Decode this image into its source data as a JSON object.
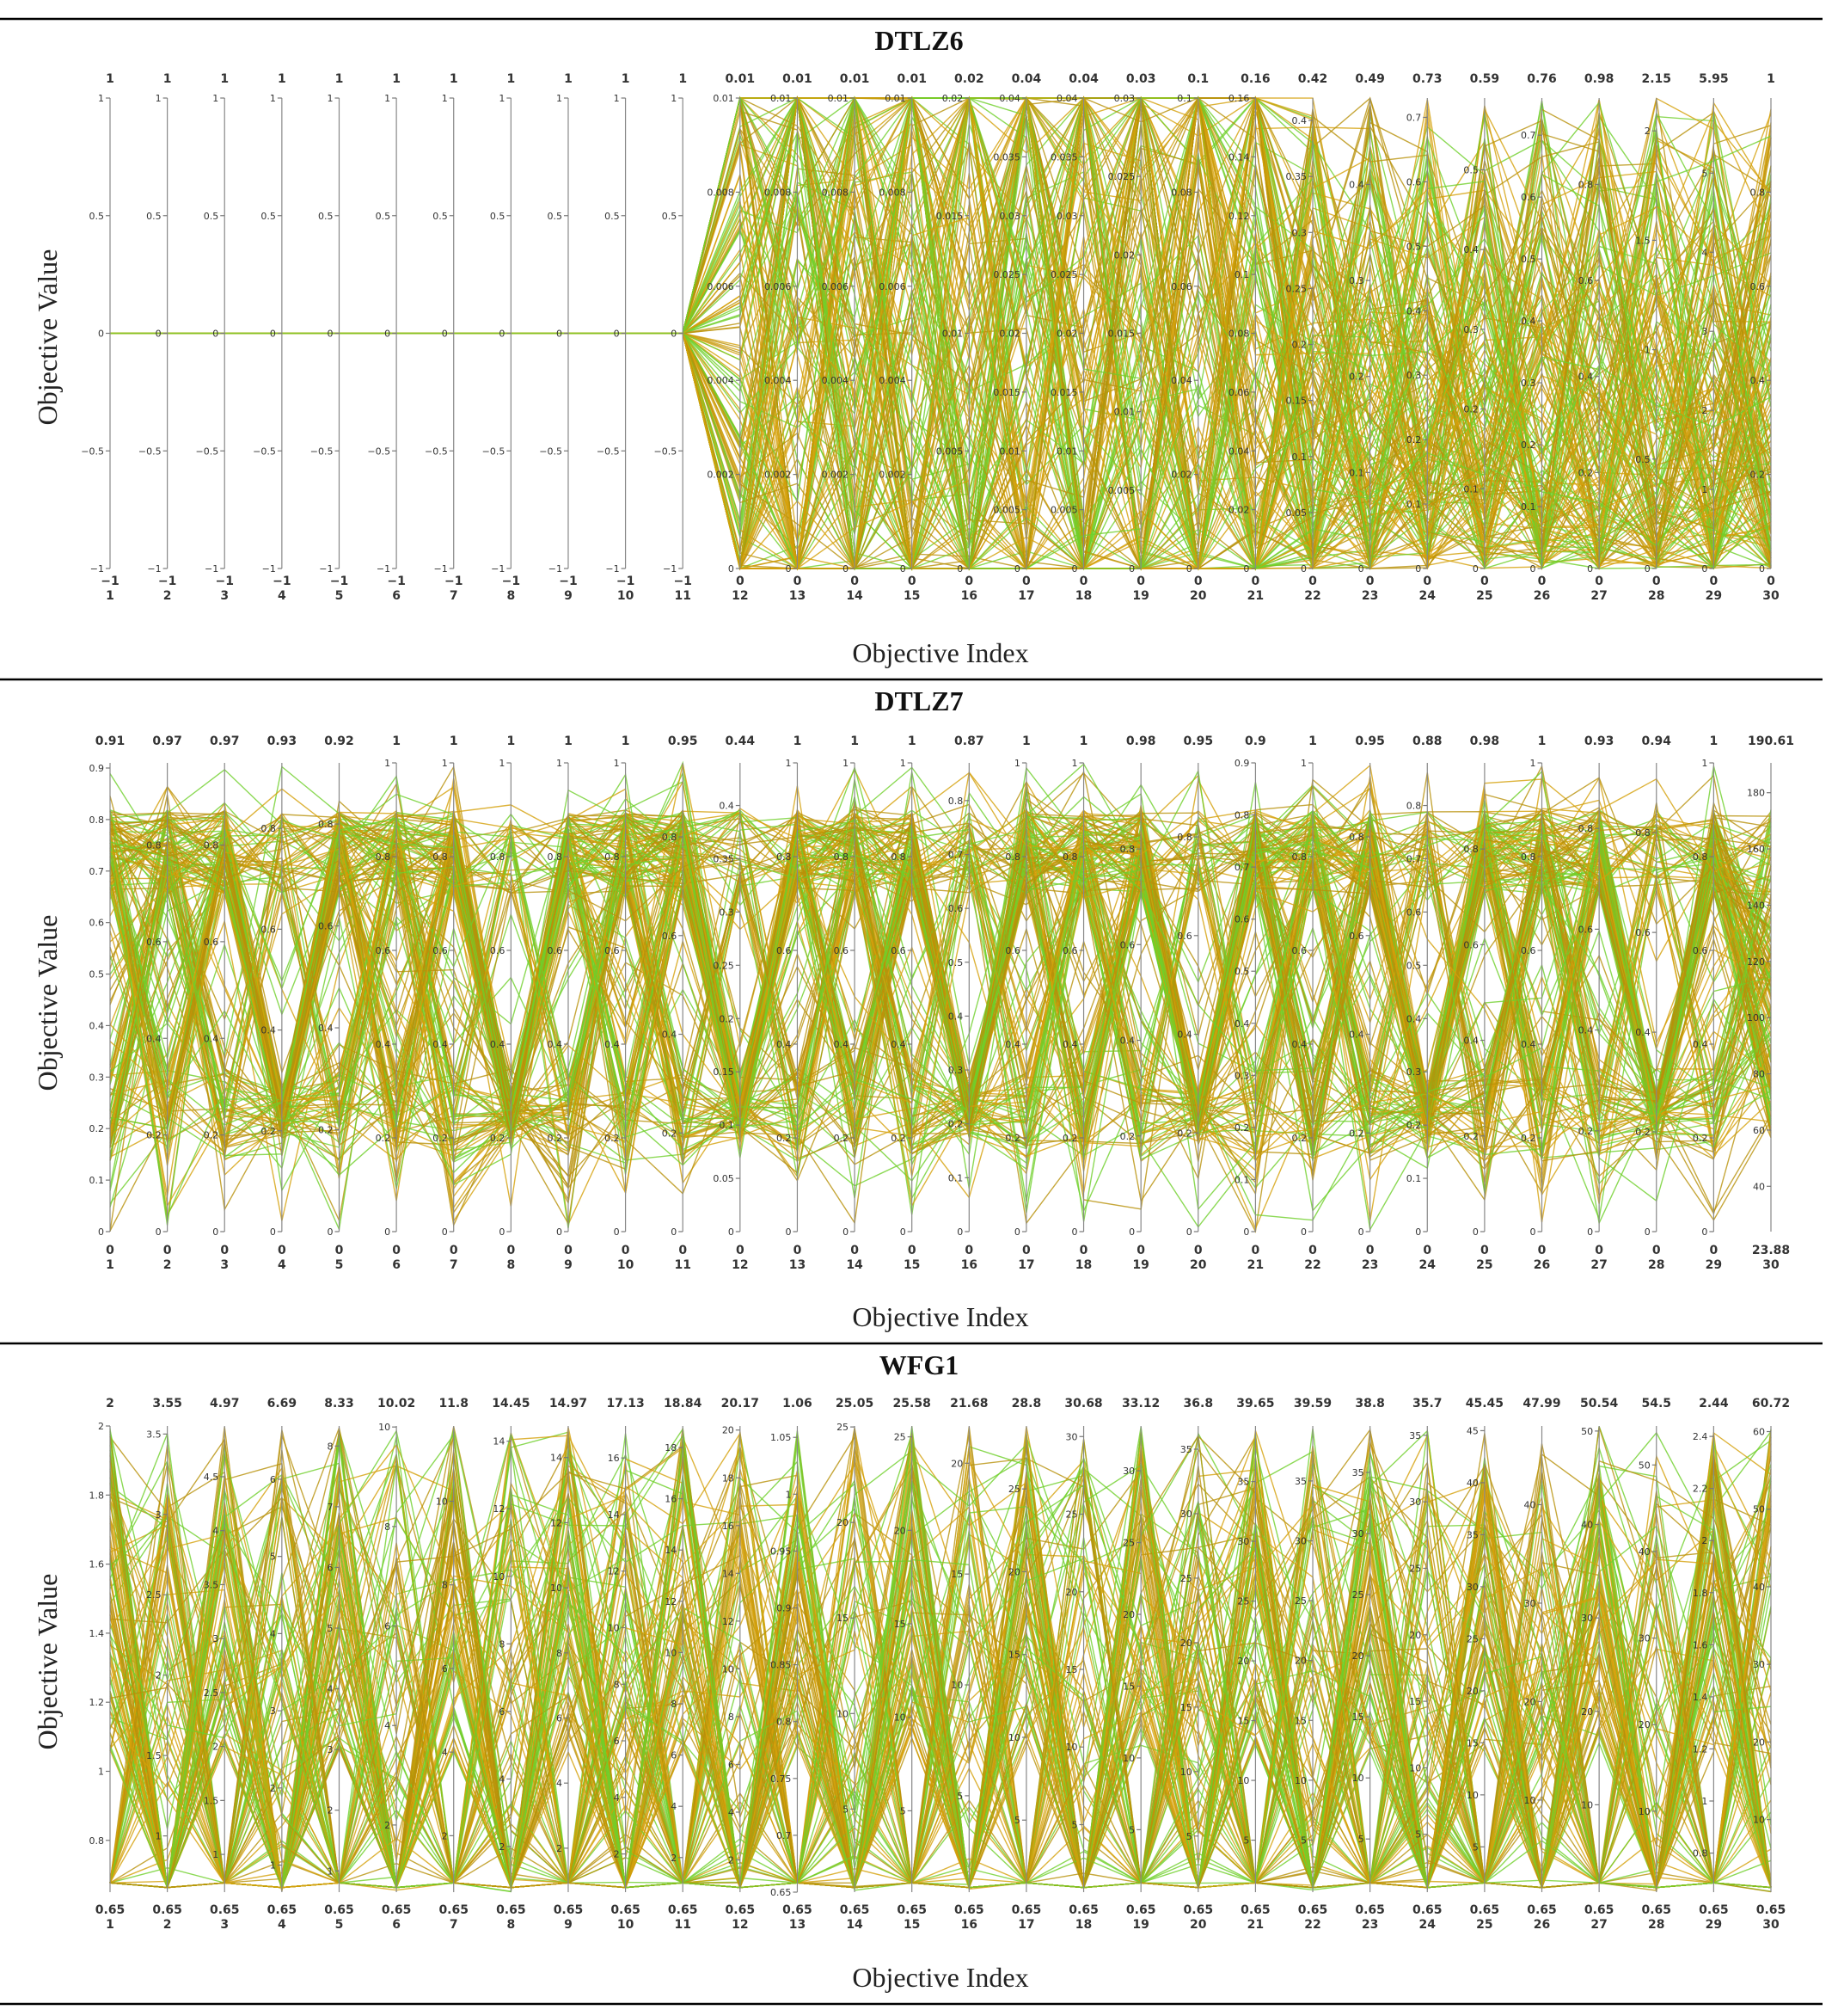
{
  "chart_data": [
    {
      "type": "parallel-coordinates",
      "title": "DTLZ6",
      "xlabel": "Objective Index",
      "ylabel": "Objective Value",
      "ylabel_ticks": [
        "1",
        "0.5",
        "0",
        "−0.5",
        "−1"
      ],
      "axes": [
        "1",
        "2",
        "3",
        "4",
        "5",
        "6",
        "7",
        "8",
        "9",
        "10",
        "11",
        "12",
        "13",
        "14",
        "15",
        "16",
        "17",
        "18",
        "19",
        "20",
        "21",
        "22",
        "23",
        "24",
        "25",
        "26",
        "27",
        "28",
        "29",
        "30"
      ],
      "axis_max_labels": [
        "1",
        "1",
        "1",
        "1",
        "1",
        "1",
        "1",
        "1",
        "1",
        "1",
        "1",
        "0.01",
        "0.01",
        "0.01",
        "0.01",
        "0.02",
        "0.04",
        "0.04",
        "0.03",
        "0.1",
        "0.16",
        "0.42",
        "0.49",
        "0.73",
        "0.59",
        "0.76",
        "0.98",
        "2.15",
        "5.95",
        "1"
      ],
      "axis_min_labels": [
        "−1",
        "−1",
        "−1",
        "−1",
        "−1",
        "−1",
        "−1",
        "−1",
        "−1",
        "−1",
        "−1",
        "0",
        "0",
        "0",
        "0",
        "0",
        "0",
        "0",
        "0",
        "0",
        "0",
        "0",
        "0",
        "0",
        "0",
        "0",
        "0",
        "0",
        "0",
        "0"
      ],
      "axis_min": [
        -1,
        -1,
        -1,
        -1,
        -1,
        -1,
        -1,
        -1,
        -1,
        -1,
        -1,
        0,
        0,
        0,
        0,
        0,
        0,
        0,
        0,
        0,
        0,
        0,
        0,
        0,
        0,
        0,
        0,
        0,
        0,
        0
      ],
      "axis_max": [
        1,
        1,
        1,
        1,
        1,
        1,
        1,
        1,
        1,
        1,
        1,
        0.01,
        0.01,
        0.01,
        0.01,
        0.02,
        0.04,
        0.04,
        0.03,
        0.1,
        0.16,
        0.42,
        0.49,
        0.73,
        0.59,
        0.76,
        0.98,
        2.15,
        5.95,
        1
      ],
      "axis_ticks": [
        [
          1,
          0.5,
          0,
          -0.5,
          -1
        ],
        [
          1,
          0.5,
          0,
          -0.5,
          -1
        ],
        [
          1,
          0.5,
          0,
          -0.5,
          -1
        ],
        [
          1,
          0.5,
          0,
          -0.5,
          -1
        ],
        [
          1,
          0.5,
          0,
          -0.5,
          -1
        ],
        [
          1,
          0.5,
          0,
          -0.5,
          -1
        ],
        [
          1,
          0.5,
          0,
          -0.5,
          -1
        ],
        [
          1,
          0.5,
          0,
          -0.5,
          -1
        ],
        [
          1,
          0.5,
          0,
          -0.5,
          -1
        ],
        [
          1,
          0.5,
          0,
          -0.5,
          -1
        ],
        [
          1,
          0.5,
          0,
          -0.5,
          -1
        ],
        [
          0.01,
          0.008,
          0.006,
          0.004,
          0.002,
          0
        ],
        [
          0.01,
          0.008,
          0.006,
          0.004,
          0.002,
          0
        ],
        [
          0.01,
          0.008,
          0.006,
          0.004,
          0.002,
          0
        ],
        [
          0.01,
          0.008,
          0.006,
          0.004,
          0.002,
          0
        ],
        [
          0.02,
          0.015,
          0.01,
          0.005,
          0
        ],
        [
          0.04,
          0.035,
          0.03,
          0.025,
          0.02,
          0.015,
          0.01,
          0.005,
          0
        ],
        [
          0.04,
          0.035,
          0.03,
          0.025,
          0.02,
          0.015,
          0.01,
          0.005,
          0
        ],
        [
          0.03,
          0.025,
          0.02,
          0.015,
          0.01,
          0.005,
          0
        ],
        [
          0.1,
          0.08,
          0.06,
          0.04,
          0.02,
          0
        ],
        [
          0.16,
          0.14,
          0.12,
          0.1,
          0.08,
          0.06,
          0.04,
          0.02,
          0
        ],
        [
          0.4,
          0.35,
          0.3,
          0.25,
          0.2,
          0.15,
          0.1,
          0.05,
          0
        ],
        [
          0.4,
          0.3,
          0.2,
          0.1,
          0
        ],
        [
          0.7,
          0.6,
          0.5,
          0.4,
          0.3,
          0.2,
          0.1,
          0
        ],
        [
          0.5,
          0.4,
          0.3,
          0.2,
          0.1,
          0
        ],
        [
          0.7,
          0.6,
          0.5,
          0.4,
          0.3,
          0.2,
          0.1,
          0
        ],
        [
          0.8,
          0.6,
          0.4,
          0.2,
          0
        ],
        [
          2,
          1.5,
          1,
          0.5,
          0
        ],
        [
          5,
          4,
          3,
          2,
          1,
          0
        ],
        [
          0.8,
          0.6,
          0.4,
          0.2,
          0
        ]
      ],
      "line_colors": [
        "#d4a00a",
        "#b8910a",
        "#6fd02a"
      ],
      "grid": false
    },
    {
      "type": "parallel-coordinates",
      "title": "DTLZ7",
      "xlabel": "Objective Index",
      "ylabel": "Objective Value",
      "ylabel_ticks": [
        "0.9",
        "0.8",
        "0.7",
        "0.6",
        "0.5",
        "0.4",
        "0.3",
        "0.2",
        "0.1",
        "0"
      ],
      "axes": [
        "1",
        "2",
        "3",
        "4",
        "5",
        "6",
        "7",
        "8",
        "9",
        "10",
        "11",
        "12",
        "13",
        "14",
        "15",
        "16",
        "17",
        "18",
        "19",
        "20",
        "21",
        "22",
        "23",
        "24",
        "25",
        "26",
        "27",
        "28",
        "29",
        "30"
      ],
      "axis_max_labels": [
        "0.91",
        "0.97",
        "0.97",
        "0.93",
        "0.92",
        "1",
        "1",
        "1",
        "1",
        "1",
        "0.95",
        "0.44",
        "1",
        "1",
        "1",
        "0.87",
        "1",
        "1",
        "0.98",
        "0.95",
        "0.9",
        "1",
        "0.95",
        "0.88",
        "0.98",
        "1",
        "0.93",
        "0.94",
        "1",
        "190.61"
      ],
      "axis_min_labels": [
        "0",
        "0",
        "0",
        "0",
        "0",
        "0",
        "0",
        "0",
        "0",
        "0",
        "0",
        "0",
        "0",
        "0",
        "0",
        "0",
        "0",
        "0",
        "0",
        "0",
        "0",
        "0",
        "0",
        "0",
        "0",
        "0",
        "0",
        "0",
        "0",
        "23.88"
      ],
      "axis_min": [
        0,
        0,
        0,
        0,
        0,
        0,
        0,
        0,
        0,
        0,
        0,
        0,
        0,
        0,
        0,
        0,
        0,
        0,
        0,
        0,
        0,
        0,
        0,
        0,
        0,
        0,
        0,
        0,
        0,
        23.88
      ],
      "axis_max": [
        0.91,
        0.97,
        0.97,
        0.93,
        0.92,
        1,
        1,
        1,
        1,
        1,
        0.95,
        0.44,
        1,
        1,
        1,
        0.87,
        1,
        1,
        0.98,
        0.95,
        0.9,
        1,
        0.95,
        0.88,
        0.98,
        1,
        0.93,
        0.94,
        1,
        190.61
      ],
      "axis_ticks": [
        [
          0.9,
          0.8,
          0.7,
          0.6,
          0.5,
          0.4,
          0.3,
          0.2,
          0.1,
          0
        ],
        [
          0.8,
          0.6,
          0.4,
          0.2,
          0
        ],
        [
          0.8,
          0.6,
          0.4,
          0.2,
          0
        ],
        [
          0.8,
          0.6,
          0.4,
          0.2,
          0
        ],
        [
          0.8,
          0.6,
          0.4,
          0.2,
          0
        ],
        [
          1,
          0.8,
          0.6,
          0.4,
          0.2,
          0
        ],
        [
          1,
          0.8,
          0.6,
          0.4,
          0.2,
          0
        ],
        [
          1,
          0.8,
          0.6,
          0.4,
          0.2,
          0
        ],
        [
          1,
          0.8,
          0.6,
          0.4,
          0.2,
          0
        ],
        [
          1,
          0.8,
          0.6,
          0.4,
          0.2,
          0
        ],
        [
          0.8,
          0.6,
          0.4,
          0.2,
          0
        ],
        [
          0.4,
          0.35,
          0.3,
          0.25,
          0.2,
          0.15,
          0.1,
          0.05,
          0
        ],
        [
          1,
          0.8,
          0.6,
          0.4,
          0.2,
          0
        ],
        [
          1,
          0.8,
          0.6,
          0.4,
          0.2,
          0
        ],
        [
          1,
          0.8,
          0.6,
          0.4,
          0.2,
          0
        ],
        [
          0.8,
          0.7,
          0.6,
          0.5,
          0.4,
          0.3,
          0.2,
          0.1,
          0
        ],
        [
          1,
          0.8,
          0.6,
          0.4,
          0.2,
          0
        ],
        [
          1,
          0.8,
          0.6,
          0.4,
          0.2,
          0
        ],
        [
          0.8,
          0.6,
          0.4,
          0.2,
          0
        ],
        [
          0.8,
          0.6,
          0.4,
          0.2,
          0
        ],
        [
          0.9,
          0.8,
          0.7,
          0.6,
          0.5,
          0.4,
          0.3,
          0.2,
          0.1,
          0
        ],
        [
          1,
          0.8,
          0.6,
          0.4,
          0.2,
          0
        ],
        [
          0.8,
          0.6,
          0.4,
          0.2,
          0
        ],
        [
          0.8,
          0.7,
          0.6,
          0.5,
          0.4,
          0.3,
          0.2,
          0.1,
          0
        ],
        [
          0.8,
          0.6,
          0.4,
          0.2,
          0
        ],
        [
          1,
          0.8,
          0.6,
          0.4,
          0.2,
          0
        ],
        [
          0.8,
          0.6,
          0.4,
          0.2,
          0
        ],
        [
          0.8,
          0.6,
          0.4,
          0.2,
          0
        ],
        [
          1,
          0.8,
          0.6,
          0.4,
          0.2,
          0
        ],
        [
          180,
          160,
          140,
          120,
          100,
          80,
          60,
          40
        ]
      ],
      "line_colors": [
        "#d4a00a",
        "#b8910a",
        "#6fd02a"
      ],
      "grid": false
    },
    {
      "type": "parallel-coordinates",
      "title": "WFG1",
      "xlabel": "Objective Index",
      "ylabel": "Objective Value",
      "ylabel_ticks": [
        "2",
        "1.8",
        "1.6",
        "1.4",
        "1.2",
        "1",
        "0.8"
      ],
      "axes": [
        "1",
        "2",
        "3",
        "4",
        "5",
        "6",
        "7",
        "8",
        "9",
        "10",
        "11",
        "12",
        "13",
        "14",
        "15",
        "16",
        "17",
        "18",
        "19",
        "20",
        "21",
        "22",
        "23",
        "24",
        "25",
        "26",
        "27",
        "28",
        "29",
        "30"
      ],
      "axis_max_labels": [
        "2",
        "3.55",
        "4.97",
        "6.69",
        "8.33",
        "10.02",
        "11.8",
        "14.45",
        "14.97",
        "17.13",
        "18.84",
        "20.17",
        "1.06",
        "25.05",
        "25.58",
        "21.68",
        "28.8",
        "30.68",
        "33.12",
        "36.8",
        "39.65",
        "39.59",
        "38.8",
        "35.7",
        "45.45",
        "47.99",
        "50.54",
        "54.5",
        "2.44",
        "60.72"
      ],
      "axis_min_labels": [
        "0.65",
        "0.65",
        "0.65",
        "0.65",
        "0.65",
        "0.65",
        "0.65",
        "0.65",
        "0.65",
        "0.65",
        "0.65",
        "0.65",
        "0.65",
        "0.65",
        "0.65",
        "0.65",
        "0.65",
        "0.65",
        "0.65",
        "0.65",
        "0.65",
        "0.65",
        "0.65",
        "0.65",
        "0.65",
        "0.65",
        "0.65",
        "0.65",
        "0.65",
        "0.65"
      ],
      "axis_min": [
        0.65,
        0.65,
        0.65,
        0.65,
        0.65,
        0.65,
        0.65,
        0.65,
        0.65,
        0.65,
        0.65,
        0.65,
        0.65,
        0.65,
        0.65,
        0.65,
        0.65,
        0.65,
        0.65,
        0.65,
        0.65,
        0.65,
        0.65,
        0.65,
        0.65,
        0.65,
        0.65,
        0.65,
        0.65,
        0.65
      ],
      "axis_max": [
        2,
        3.55,
        4.97,
        6.69,
        8.33,
        10.02,
        11.8,
        14.45,
        14.97,
        17.13,
        18.84,
        20.17,
        1.06,
        25.05,
        25.58,
        21.68,
        28.8,
        30.68,
        33.12,
        36.8,
        39.65,
        39.59,
        38.8,
        35.7,
        45.45,
        47.99,
        50.54,
        54.5,
        2.44,
        60.72
      ],
      "axis_ticks": [
        [
          2,
          1.8,
          1.6,
          1.4,
          1.2,
          1,
          0.8
        ],
        [
          3.5,
          3,
          2.5,
          2,
          1.5,
          1
        ],
        [
          4.5,
          4,
          3.5,
          3,
          2.5,
          2,
          1.5,
          1
        ],
        [
          6,
          5,
          4,
          3,
          2,
          1
        ],
        [
          8,
          7,
          6,
          5,
          4,
          3,
          2,
          1
        ],
        [
          10,
          8,
          6,
          4,
          2
        ],
        [
          10,
          8,
          6,
          4,
          2
        ],
        [
          14,
          12,
          10,
          8,
          6,
          4,
          2
        ],
        [
          14,
          12,
          10,
          8,
          6,
          4,
          2
        ],
        [
          16,
          14,
          12,
          10,
          8,
          6,
          4,
          2
        ],
        [
          18,
          16,
          14,
          12,
          10,
          8,
          6,
          4,
          2
        ],
        [
          20,
          18,
          16,
          14,
          12,
          10,
          8,
          6,
          4,
          2
        ],
        [
          1.05,
          1,
          0.95,
          0.9,
          0.85,
          0.8,
          0.75,
          0.7,
          0.65
        ],
        [
          25,
          20,
          15,
          10,
          5
        ],
        [
          25,
          20,
          15,
          10,
          5
        ],
        [
          20,
          15,
          10,
          5
        ],
        [
          25,
          20,
          15,
          10,
          5
        ],
        [
          30,
          25,
          20,
          15,
          10,
          5
        ],
        [
          30,
          25,
          20,
          15,
          10,
          5
        ],
        [
          35,
          30,
          25,
          20,
          15,
          10,
          5
        ],
        [
          35,
          30,
          25,
          20,
          15,
          10,
          5
        ],
        [
          35,
          30,
          25,
          20,
          15,
          10,
          5
        ],
        [
          35,
          30,
          25,
          20,
          15,
          10,
          5
        ],
        [
          35,
          30,
          25,
          20,
          15,
          10,
          5
        ],
        [
          45,
          40,
          35,
          30,
          25,
          20,
          15,
          10,
          5
        ],
        [
          40,
          30,
          20,
          10
        ],
        [
          50,
          40,
          30,
          20,
          10
        ],
        [
          50,
          40,
          30,
          20,
          10
        ],
        [
          2.4,
          2.2,
          2,
          1.8,
          1.6,
          1.4,
          1.2,
          1,
          0.8
        ],
        [
          60,
          50,
          40,
          30,
          20,
          10
        ]
      ],
      "line_colors": [
        "#d4a00a",
        "#b8910a",
        "#6fd02a"
      ],
      "grid": false
    }
  ]
}
